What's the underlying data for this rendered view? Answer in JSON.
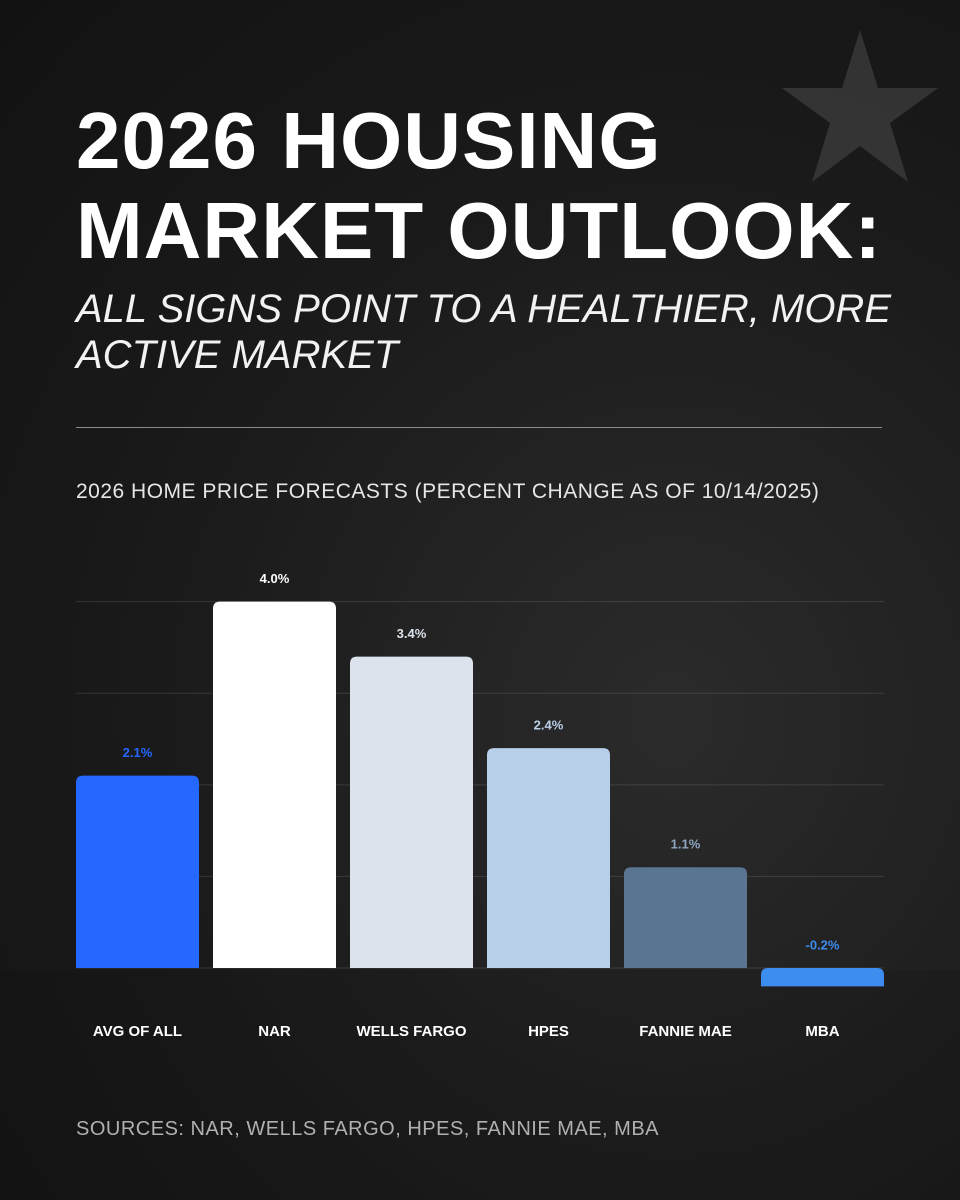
{
  "chart_data": {
    "type": "bar",
    "title": "2026 HOUSING MARKET OUTLOOK:",
    "subtitle": "ALL SIGNS POINT TO A HEALTHIER, MORE ACTIVE MARKET",
    "chart_title": "2026 HOME PRICE FORECASTS (PERCENT CHANGE AS OF 10/14/2025)",
    "source": "SOURCES: NAR, WELLS FARGO, HPES, FANNIE MAE, MBA",
    "categories": [
      "AVG OF ALL",
      "NAR",
      "WELLS FARGO",
      "HPES",
      "FANNIE MAE",
      "MBA"
    ],
    "values": [
      2.1,
      4.0,
      3.4,
      2.4,
      1.1,
      -0.2
    ],
    "value_labels": [
      "2.1%",
      "4.0%",
      "3.4%",
      "2.4%",
      "1.1%",
      "-0.2%"
    ],
    "colors": [
      "#2468ff",
      "#ffffff",
      "#dce3ec",
      "#b8cfe9",
      "#5a7591",
      "#3d8cf0"
    ],
    "ylim": [
      -0.3,
      4.2
    ],
    "yticks": [
      0,
      1,
      2,
      3,
      4
    ],
    "grid": true
  }
}
